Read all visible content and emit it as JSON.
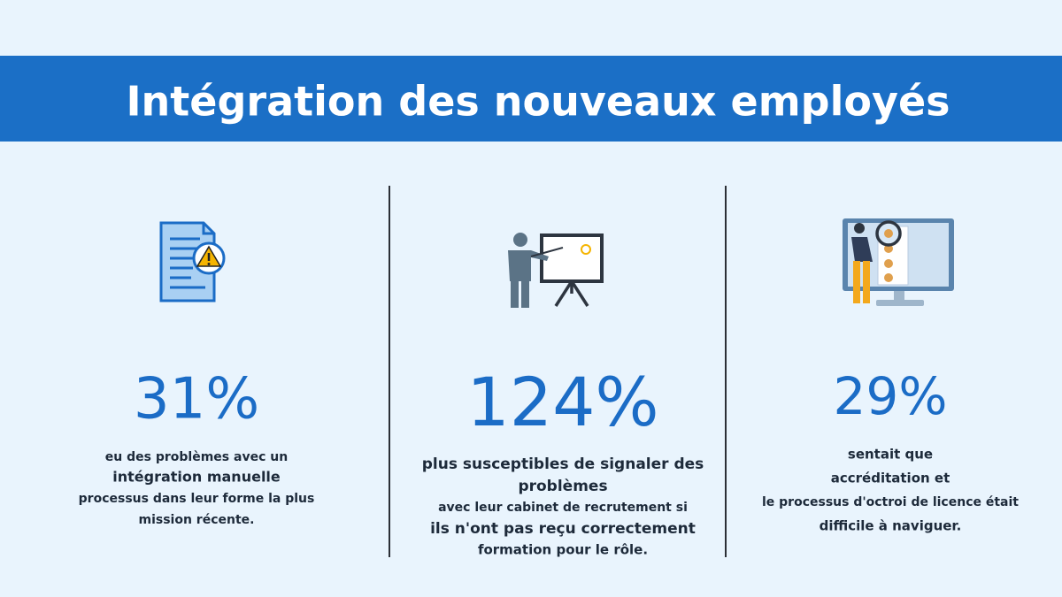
{
  "header": {
    "title": "Intégration des nouveaux employés"
  },
  "columns": [
    {
      "stat": "31%",
      "lines": [
        "eu des problèmes avec un",
        "intégration manuelle",
        "processus dans leur forme la plus",
        "mission récente."
      ]
    },
    {
      "stat": "124%",
      "lines": [
        "plus susceptibles de signaler des",
        "problèmes",
        "avec leur cabinet de recrutement si",
        "ils n'ont pas reçu correctement",
        "formation pour le rôle."
      ]
    },
    {
      "stat": "29%",
      "lines": [
        "sentait que",
        "accréditation et",
        "le processus d'octroi de licence était",
        "difficile à naviguer."
      ]
    }
  ]
}
